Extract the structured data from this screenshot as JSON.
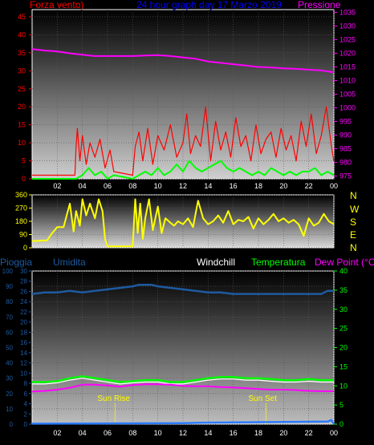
{
  "colors": {
    "wind": "#ff0000",
    "gust": "#00ff00",
    "pressure": "#ff00ff",
    "direction": "#ffff00",
    "humidity": "#1e5aa0",
    "rain": "#1e5aa0",
    "windchill": "#ffffff",
    "temperature": "#00ff00",
    "dewpoint": "#ff00ff",
    "title": "#0000ff",
    "sun": "#ffff00"
  },
  "chart_data": [
    {
      "type": "line",
      "title": "24 hour graph day 17 Marzo 2019",
      "left_axis": {
        "label": "Forza vento)",
        "min": 0,
        "max": 47,
        "ticks": [
          0,
          5,
          10,
          15,
          20,
          25,
          30,
          35,
          40,
          45
        ]
      },
      "right_axis": {
        "label": "Pressione",
        "min": 974,
        "max": 1036,
        "ticks": [
          975,
          980,
          985,
          990,
          995,
          1000,
          1005,
          1010,
          1015,
          1020,
          1025,
          1030,
          1035
        ]
      },
      "x_ticks": [
        "02",
        "04",
        "06",
        "08",
        "10",
        "12",
        "14",
        "16",
        "18",
        "20",
        "22",
        "00"
      ],
      "x_range": [
        0,
        24
      ],
      "series": [
        {
          "axis": "right",
          "x": [
            0,
            1,
            2,
            3,
            4,
            5,
            6,
            7,
            8,
            9,
            10,
            11,
            12,
            13,
            14,
            15,
            16,
            17,
            18,
            19,
            20,
            21,
            22,
            23,
            24
          ],
          "values": [
            1021.5,
            1021,
            1020.7,
            1020,
            1019.5,
            1019,
            1019,
            1019,
            1019,
            1019.2,
            1019.3,
            1019,
            1018.5,
            1018,
            1017,
            1016.5,
            1016,
            1015.5,
            1015,
            1014.8,
            1014.5,
            1014.3,
            1014,
            1013.7,
            1013
          ]
        },
        {
          "axis": "left",
          "x": [
            0,
            3.4,
            3.5,
            3.6,
            3.8,
            4.0,
            4.3,
            4.6,
            5.0,
            5.4,
            5.8,
            6.2,
            6.5,
            8.0,
            8.2,
            8.5,
            8.8,
            9.2,
            9.6,
            10.0,
            10.5,
            11.0,
            11.5,
            12.0,
            12.3,
            12.6,
            13.0,
            13.4,
            13.8,
            14.2,
            14.6,
            15.0,
            15.4,
            15.8,
            16.2,
            16.6,
            17.0,
            17.4,
            17.8,
            18.2,
            18.6,
            19.0,
            19.4,
            19.8,
            20.2,
            20.6,
            21.0,
            21.4,
            21.8,
            22.2,
            22.6,
            23.0,
            23.4,
            23.8,
            24.0
          ],
          "values": [
            1,
            1,
            9,
            14,
            5,
            12,
            4,
            10,
            6,
            11,
            3,
            8,
            2,
            1,
            9,
            13,
            5,
            14,
            4,
            12,
            8,
            15,
            6,
            10,
            18,
            7,
            12,
            9,
            20,
            5,
            16,
            8,
            13,
            6,
            17,
            9,
            12,
            5,
            15,
            7,
            11,
            13,
            6,
            14,
            8,
            12,
            5,
            16,
            9,
            18,
            7,
            12,
            20,
            9,
            5
          ]
        },
        {
          "axis": "left",
          "x": [
            0,
            3.5,
            4,
            4.5,
            5,
            5.5,
            6,
            6.5,
            8,
            8.5,
            9,
            9.5,
            10,
            10.5,
            11,
            11.5,
            12,
            12.5,
            13,
            13.5,
            14,
            14.5,
            15,
            15.5,
            16,
            16.5,
            17,
            17.5,
            18,
            18.5,
            19,
            19.5,
            20,
            20.5,
            21,
            21.5,
            22,
            22.5,
            23,
            23.5,
            24
          ],
          "values": [
            0,
            0,
            1,
            3,
            1,
            2,
            0,
            1,
            0,
            1,
            2,
            1,
            3,
            1,
            2,
            4,
            2,
            5,
            3,
            2,
            3,
            4,
            5,
            3,
            2,
            3,
            2,
            1,
            2,
            1,
            3,
            2,
            1,
            2,
            1,
            2,
            2,
            3,
            1,
            2,
            1
          ]
        }
      ]
    },
    {
      "type": "line",
      "axis_ticks": [
        0,
        90,
        180,
        270,
        360
      ],
      "compass": [
        "N",
        "W",
        "S",
        "E",
        "N"
      ],
      "ylim": [
        0,
        360
      ],
      "x_range": [
        0,
        24
      ],
      "series": [
        {
          "x": [
            0,
            1.2,
            1.5,
            2.0,
            2.5,
            3.0,
            3.3,
            3.5,
            3.8,
            4.0,
            4.3,
            4.6,
            5.0,
            5.3,
            5.6,
            5.8,
            6.0,
            6.3,
            6.6,
            7.0,
            7.5,
            8.0,
            8.2,
            8.4,
            8.6,
            8.8,
            9.0,
            9.3,
            9.6,
            10.0,
            10.3,
            10.6,
            11.0,
            11.3,
            11.6,
            12.0,
            12.4,
            12.8,
            13.2,
            13.6,
            14.0,
            14.4,
            14.8,
            15.2,
            15.6,
            16.0,
            16.4,
            16.8,
            17.2,
            17.6,
            18.0,
            18.4,
            18.8,
            19.2,
            19.6,
            20.0,
            20.4,
            20.8,
            21.2,
            21.6,
            22.0,
            22.4,
            22.8,
            23.2,
            23.6,
            24.0
          ],
          "values": [
            45,
            50,
            90,
            140,
            140,
            300,
            110,
            250,
            150,
            330,
            220,
            300,
            200,
            330,
            250,
            60,
            10,
            10,
            10,
            10,
            10,
            10,
            330,
            100,
            300,
            60,
            200,
            330,
            120,
            280,
            100,
            200,
            170,
            150,
            180,
            160,
            200,
            140,
            320,
            200,
            160,
            180,
            220,
            170,
            250,
            160,
            190,
            180,
            210,
            130,
            200,
            160,
            190,
            230,
            180,
            200,
            170,
            190,
            160,
            80,
            200,
            150,
            170,
            230,
            180,
            160
          ]
        }
      ]
    },
    {
      "type": "line",
      "legend": [
        "Pioggia",
        "Umidita",
        "Windchill",
        "Temperatura",
        "Dew Point (°C)"
      ],
      "left_axis_humidity": {
        "min": 0,
        "max": 100,
        "ticks": [
          0,
          10,
          20,
          30,
          40,
          50,
          60,
          70,
          80,
          90,
          100
        ]
      },
      "left_axis_rain": {
        "min": 0,
        "max": 30,
        "ticks": [
          0,
          2,
          4,
          6,
          8,
          10,
          12,
          14,
          16,
          18,
          20,
          22,
          24,
          26,
          28,
          30
        ]
      },
      "right_axis": {
        "min": 0,
        "max": 40,
        "ticks": [
          0,
          5,
          10,
          15,
          20,
          25,
          30,
          35,
          40
        ]
      },
      "x_ticks": [
        "02",
        "04",
        "06",
        "08",
        "10",
        "12",
        "14",
        "16",
        "18",
        "20",
        "22",
        "00"
      ],
      "x_range": [
        0,
        24
      ],
      "annotations": [
        {
          "text": "Sun Rise",
          "x": 6.6
        },
        {
          "text": "Sun Set",
          "x": 18.6
        }
      ],
      "series": [
        {
          "name": "Umidita",
          "axis": "humidity",
          "x": [
            0,
            1,
            2,
            3,
            4,
            5,
            6,
            7,
            8,
            8.5,
            9,
            9.5,
            10,
            11,
            12,
            13,
            14,
            15,
            16,
            17,
            18,
            19,
            20,
            21,
            22,
            23,
            23.5,
            24
          ],
          "values": [
            85,
            86,
            86,
            87,
            86,
            87,
            88,
            89,
            90,
            91,
            91,
            91,
            90,
            89,
            88,
            87,
            86,
            86,
            85,
            85,
            85,
            85,
            85,
            85,
            85,
            85,
            87,
            87
          ]
        },
        {
          "name": "Temperatura",
          "axis": "right",
          "x": [
            0,
            1,
            2,
            3,
            4,
            5,
            6,
            7,
            8,
            9,
            10,
            11,
            12,
            13,
            14,
            15,
            16,
            17,
            18,
            19,
            20,
            21,
            22,
            23,
            24
          ],
          "values": [
            11,
            11,
            11.2,
            12,
            12.5,
            12,
            11.5,
            11,
            11.2,
            11.5,
            11.5,
            11,
            11,
            11.5,
            12,
            12.3,
            12.3,
            12,
            12,
            11.8,
            11.5,
            11.5,
            11.8,
            11.5,
            11.5
          ]
        },
        {
          "name": "Windchill",
          "axis": "right",
          "x": [
            0,
            1,
            2,
            3,
            4,
            5,
            6,
            7,
            8,
            9,
            10,
            11,
            12,
            13,
            14,
            15,
            16,
            17,
            18,
            19,
            20,
            21,
            22,
            23,
            24
          ],
          "values": [
            10.5,
            10.5,
            10.8,
            11.5,
            12,
            11.5,
            11,
            10.5,
            10.8,
            11,
            11,
            10.5,
            10.5,
            11,
            11.5,
            11.8,
            11.8,
            11.5,
            11.5,
            11.2,
            11,
            11,
            11.2,
            11,
            11
          ]
        },
        {
          "name": "Dew Point",
          "axis": "right",
          "x": [
            0,
            1,
            2,
            3,
            4,
            5,
            6,
            7,
            8,
            9,
            10,
            11,
            12,
            13,
            14,
            15,
            16,
            17,
            18,
            19,
            20,
            21,
            22,
            23,
            24
          ],
          "values": [
            8.5,
            8.7,
            9,
            9.5,
            10.3,
            10.3,
            10.1,
            9.8,
            10.2,
            10.4,
            10.4,
            10.3,
            10.0,
            9.9,
            9.9,
            9.7,
            9.6,
            9.4,
            9.2,
            9.0,
            9.0,
            8.9,
            8.7,
            8.6,
            8.6
          ]
        },
        {
          "name": "Pioggia",
          "axis": "rain",
          "x": [
            0,
            12,
            14,
            23.5,
            23.8,
            24
          ],
          "values": [
            0.1,
            0.2,
            0.3,
            0.5,
            0.8,
            0
          ]
        }
      ]
    }
  ]
}
